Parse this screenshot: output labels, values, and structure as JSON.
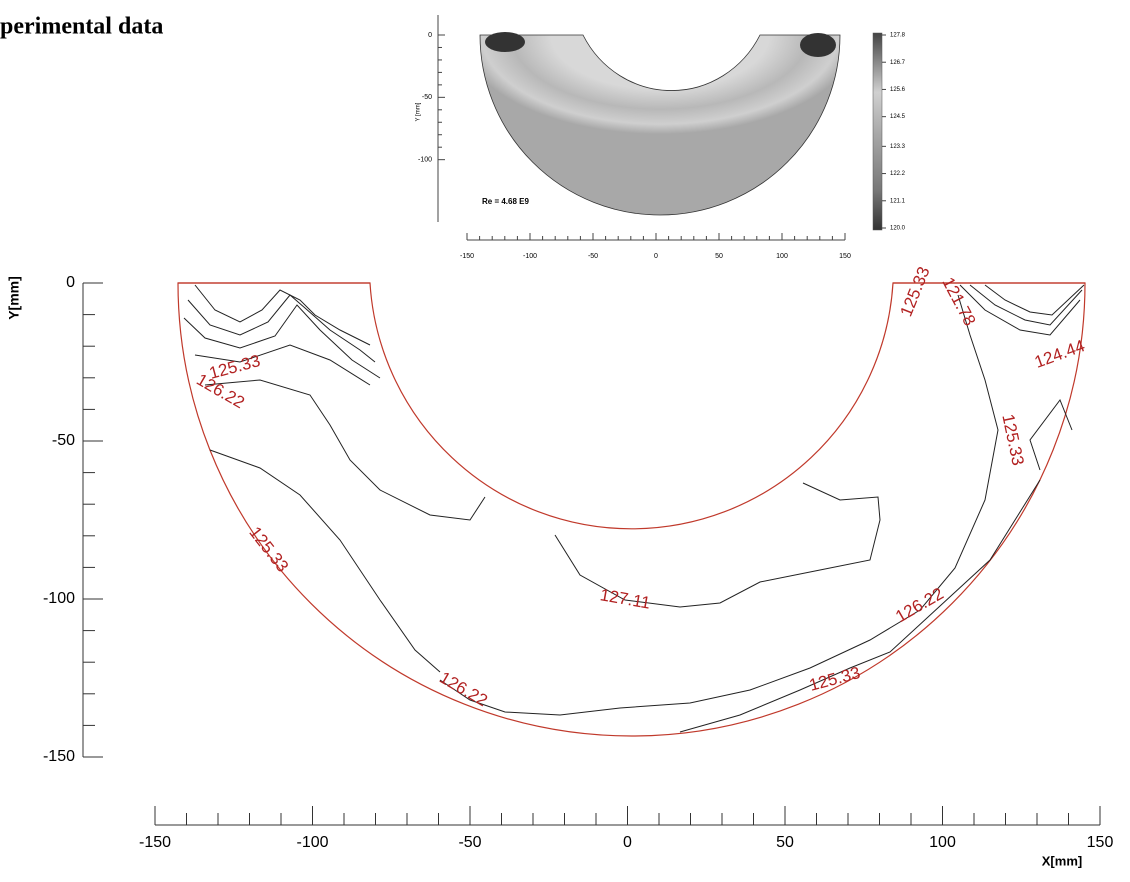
{
  "page_title": "perimental data",
  "inset": {
    "type": "image-map",
    "ylabel": "Y [mm]",
    "annotation": "Re = 4.68 E9",
    "xlim": [
      -150,
      150
    ],
    "xticks": [
      -150,
      -100,
      -50,
      0,
      50,
      100,
      150
    ],
    "ylim": [
      -150,
      0
    ],
    "yticks": [
      0,
      -50,
      -100
    ],
    "clim": [
      120,
      127.8
    ],
    "cticks": [
      127.8,
      126.7,
      125.6,
      124.5,
      123.3,
      122.2,
      121.1,
      {
        "value": 120,
        "label": "120.0"
      }
    ]
  },
  "chart_data": {
    "type": "contour",
    "xlabel": "X[mm]",
    "ylabel": "Y[mm]",
    "xlim": [
      -150,
      150
    ],
    "xticks": [
      -150,
      -100,
      -50,
      0,
      50,
      100,
      150
    ],
    "ylim": [
      -150,
      0
    ],
    "yticks": [
      0,
      -50,
      -100,
      -150
    ],
    "line_color": "#222222",
    "label_color": "#b22222",
    "boundary_color": "#c0392b",
    "contour_labels": [
      125.33,
      126.22,
      125.33,
      126.22,
      127.11,
      126.22,
      125.33,
      125.33,
      125.33,
      121.78,
      124.44
    ]
  }
}
